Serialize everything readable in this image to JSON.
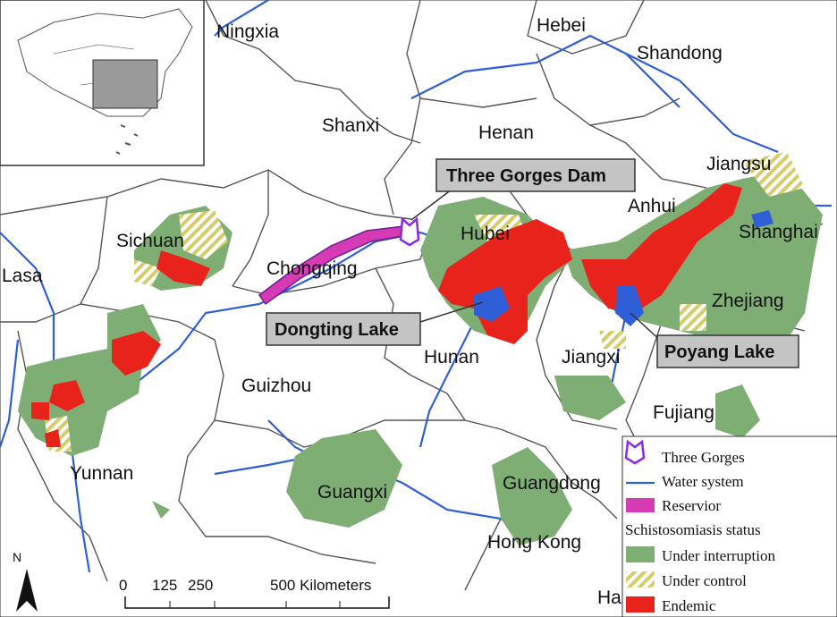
{
  "colors": {
    "under_interruption": "#7fae74",
    "under_control_stripe": "#d6cc6a",
    "endemic": "#e8231c",
    "reservoir": "#d63ab5",
    "water": "#2f5fd6",
    "three_gorges": "#8a2be2",
    "border": "#555555"
  },
  "provinces": [
    "Ningxia",
    "Hebei",
    "Shandong",
    "Shanxi",
    "Henan",
    "Jiangsu",
    "Anhui",
    "Shanghai",
    "Sichuan",
    "Hubei",
    "Chongqing",
    "Lasa",
    "Zhejiang",
    "Hunan",
    "Jiangxi",
    "Guizhou",
    "Fujiang",
    "Yunnan",
    "Guangxi",
    "Guangdong",
    "Hong Kong",
    "Ha"
  ],
  "callouts": {
    "three_gorges_dam": "Three Gorges Dam",
    "dongting_lake": "Dongting Lake",
    "poyang_lake": "Poyang Lake"
  },
  "legend": {
    "items": [
      {
        "label": "Three Gorges",
        "symbol": "three-gorges-icon"
      },
      {
        "label": "Water system",
        "symbol": "water-line"
      },
      {
        "label": "Reservior",
        "symbol": "reservoir-swatch"
      },
      {
        "label": "Schistosomiasis status",
        "symbol": "none"
      },
      {
        "label": "Under interruption",
        "symbol": "interruption-swatch"
      },
      {
        "label": "Under control",
        "symbol": "control-swatch"
      },
      {
        "label": "Endemic",
        "symbol": "endemic-swatch"
      }
    ]
  },
  "scale_bar": {
    "ticks": [
      "0",
      "125",
      "250",
      "500 Kilometers"
    ]
  },
  "north_arrow": {
    "label": "N"
  }
}
